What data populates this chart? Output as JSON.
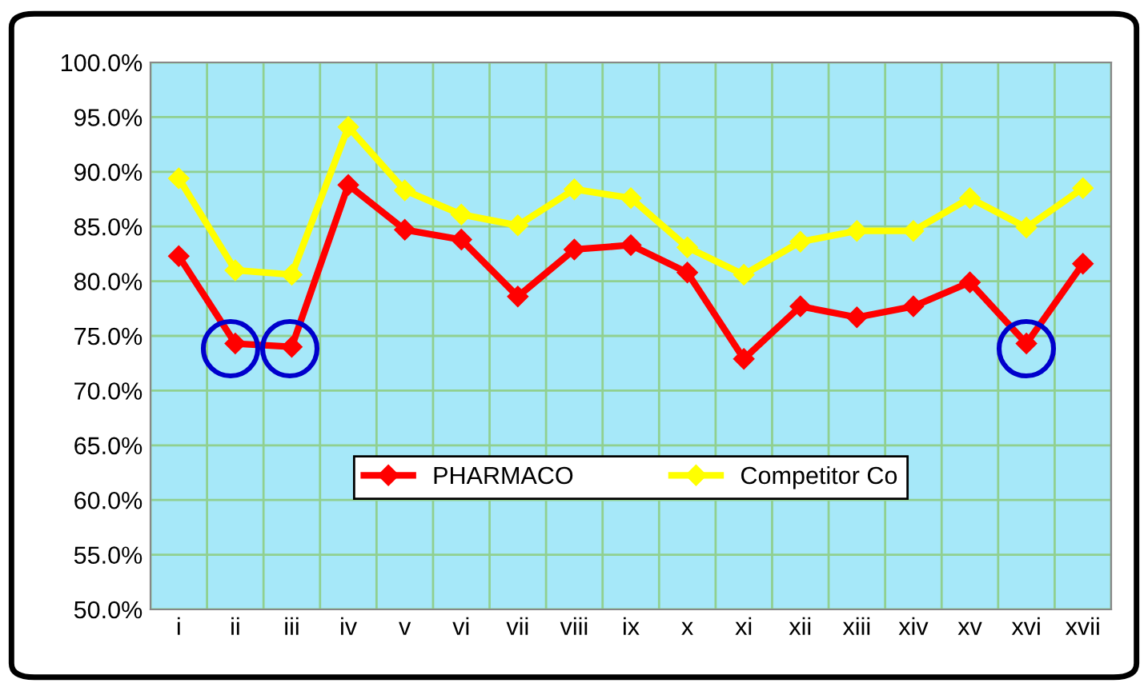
{
  "chart_data": {
    "type": "line",
    "categories": [
      "i",
      "ii",
      "iii",
      "iv",
      "v",
      "vi",
      "vii",
      "viii",
      "ix",
      "x",
      "xi",
      "xii",
      "xiii",
      "xiv",
      "xv",
      "xvi",
      "xvii"
    ],
    "series": [
      {
        "name": "PHARMACO",
        "color": "#ff0000",
        "values": [
          82.3,
          74.3,
          74.0,
          88.8,
          84.7,
          83.8,
          78.6,
          82.9,
          83.3,
          80.8,
          72.9,
          77.7,
          76.7,
          77.7,
          79.9,
          74.3,
          81.6
        ]
      },
      {
        "name": "Competitor Co",
        "color": "#ffff00",
        "values": [
          89.4,
          81.0,
          80.6,
          94.1,
          88.3,
          86.1,
          85.1,
          88.4,
          87.6,
          83.1,
          80.6,
          83.6,
          84.6,
          84.6,
          87.6,
          84.9,
          88.5
        ]
      }
    ],
    "ylim": [
      50,
      100
    ],
    "yticks": [
      {
        "value": 50,
        "label": "50.0%"
      },
      {
        "value": 55,
        "label": "55.0%"
      },
      {
        "value": 60,
        "label": "60.0%"
      },
      {
        "value": 65,
        "label": "65.0%"
      },
      {
        "value": 70,
        "label": "70.0%"
      },
      {
        "value": 75,
        "label": "75.0%"
      },
      {
        "value": 80,
        "label": "80.0%"
      },
      {
        "value": 85,
        "label": "85.0%"
      },
      {
        "value": 90,
        "label": "90.0%"
      },
      {
        "value": 95,
        "label": "95.0%"
      },
      {
        "value": 100,
        "label": "100.0%"
      }
    ],
    "grid": true,
    "legend": "bottom",
    "marker": "diamond",
    "line_style": "solid"
  }
}
